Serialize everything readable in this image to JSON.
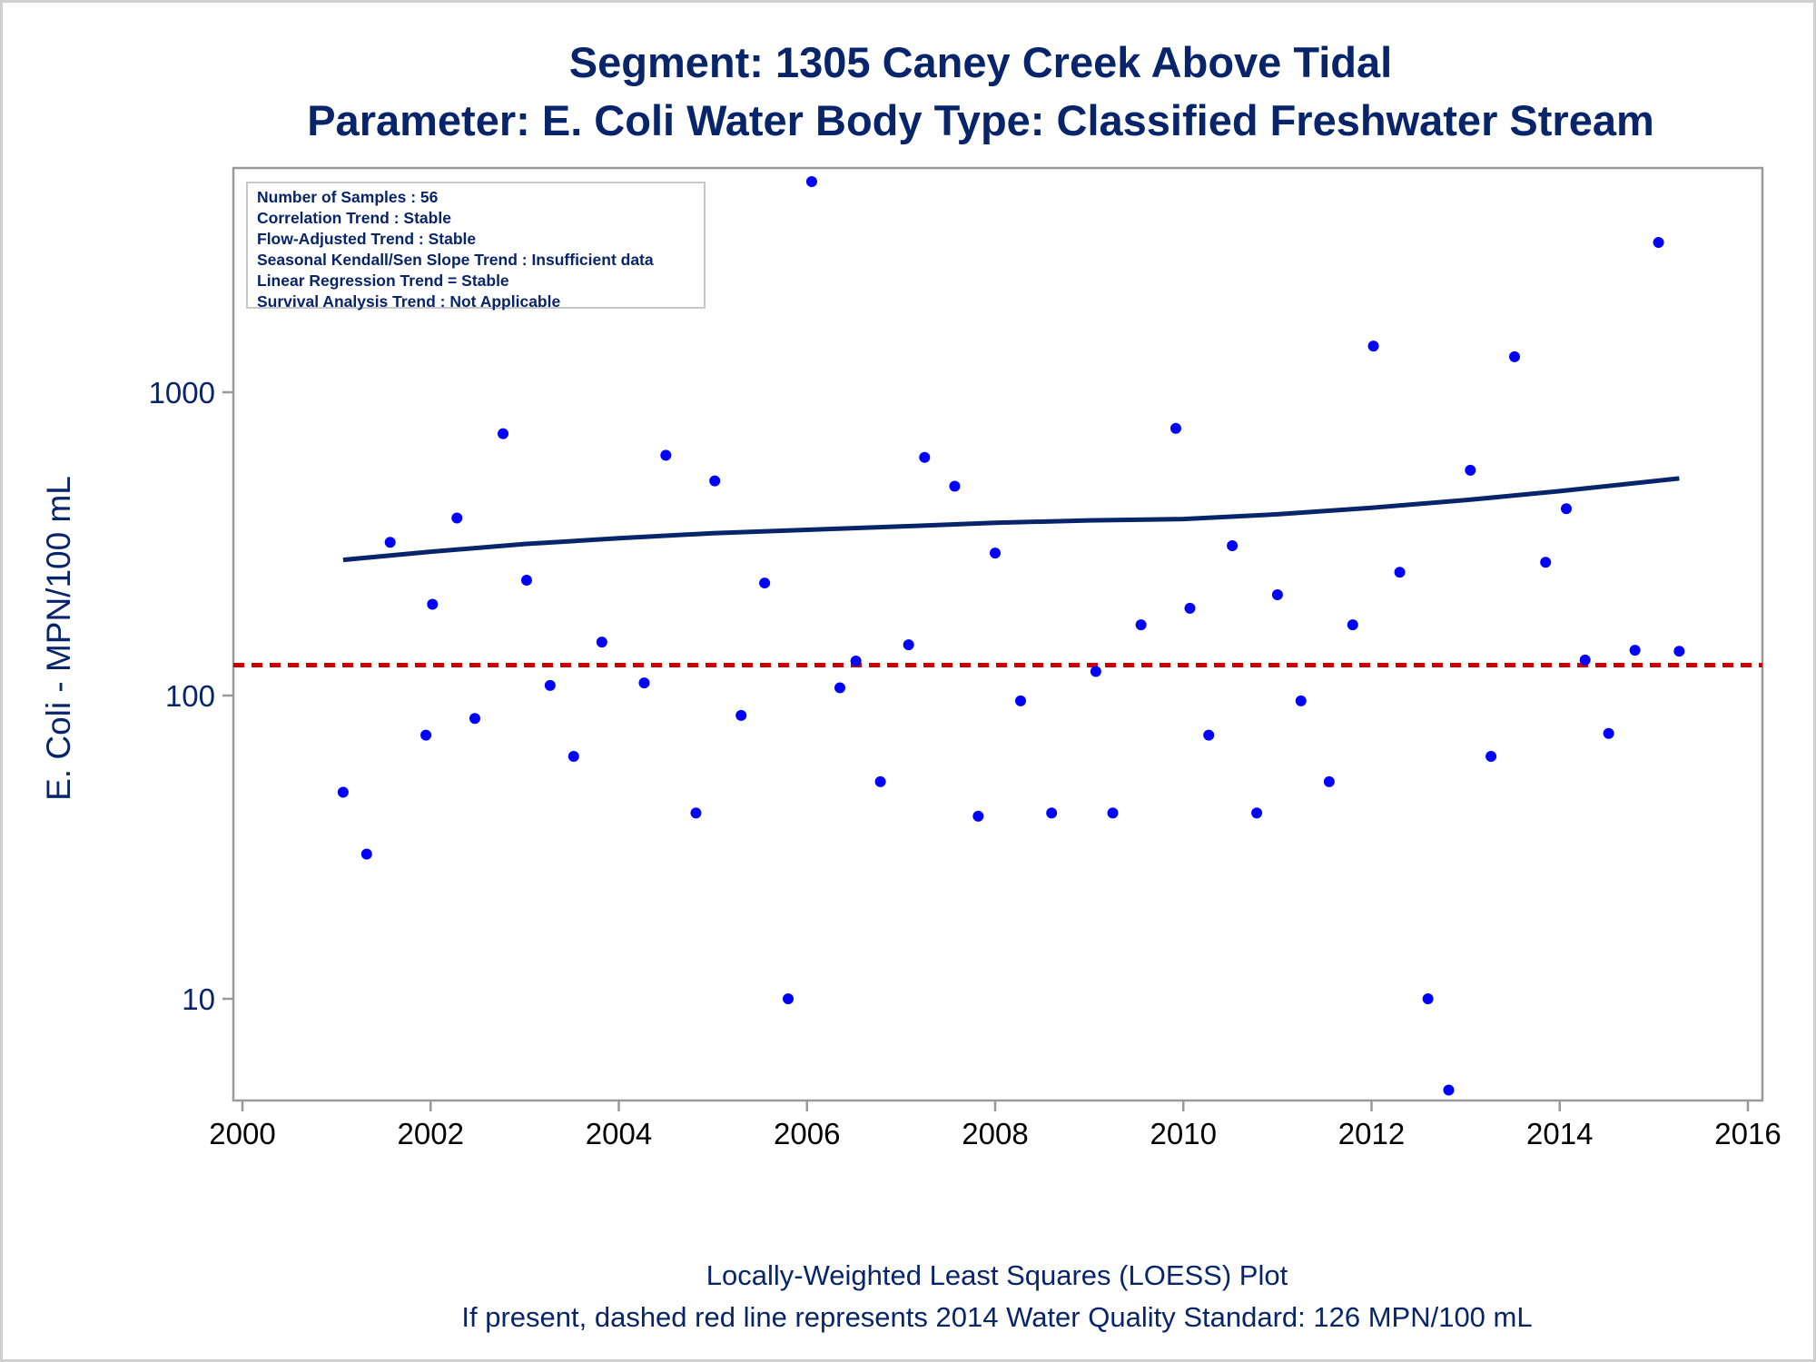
{
  "title_line1": "Segment: 1305  Caney Creek Above Tidal",
  "title_line2": "Parameter: E. Coli   Water Body Type: Classified Freshwater Stream",
  "stats_box": [
    "Number of Samples : 56",
    "Correlation Trend : Stable",
    "Flow-Adjusted Trend : Stable",
    "Seasonal Kendall/Sen Slope Trend : Insufficient data",
    "Linear Regression Trend = Stable",
    "Survival Analysis Trend : Not Applicable"
  ],
  "footnote1": "Locally-Weighted Least Squares (LOESS) Plot",
  "footnote2": "If present, dashed red line represents 2014 Water Quality Standard: 126 MPN/100 mL",
  "colors": {
    "text": "#08246b",
    "points": "#0000ff",
    "loess": "#08246b",
    "standard_line": "#cc0000",
    "frame": "#999999"
  },
  "chart_data": {
    "type": "scatter",
    "ylabel": "E. Coli - MPN/100 mL",
    "xlabel": "",
    "y_scale": "log",
    "xlim": [
      2000,
      2016
    ],
    "ylim": [
      5,
      5000
    ],
    "x_ticks": [
      2000,
      2002,
      2004,
      2006,
      2008,
      2010,
      2012,
      2014,
      2016
    ],
    "y_ticks": [
      10,
      100,
      1000
    ],
    "grid": false,
    "samples": {
      "x": [
        2001.07,
        2001.32,
        2001.57,
        2001.95,
        2002.02,
        2002.28,
        2002.47,
        2002.77,
        2003.02,
        2003.27,
        2003.52,
        2003.82,
        2004.27,
        2004.5,
        2004.82,
        2005.02,
        2005.3,
        2005.55,
        2005.8,
        2006.05,
        2006.35,
        2006.52,
        2006.78,
        2007.08,
        2007.25,
        2007.57,
        2007.82,
        2008.0,
        2008.27,
        2008.6,
        2009.07,
        2009.25,
        2009.55,
        2009.92,
        2010.07,
        2010.27,
        2010.52,
        2010.78,
        2011.0,
        2011.25,
        2011.55,
        2011.8,
        2012.02,
        2012.3,
        2012.6,
        2012.82,
        2013.05,
        2013.27,
        2013.52,
        2013.85,
        2014.07,
        2014.27,
        2014.52,
        2014.8,
        2015.05,
        2015.27
      ],
      "y": [
        48,
        30,
        320,
        74,
        200,
        385,
        84,
        730,
        240,
        108,
        63,
        150,
        110,
        620,
        41,
        510,
        86,
        235,
        10,
        4950,
        106,
        130,
        52,
        147,
        610,
        490,
        40,
        295,
        96,
        41,
        120,
        41,
        171,
        760,
        194,
        74,
        312,
        41,
        215,
        96,
        52,
        171,
        1420,
        255,
        10,
        5,
        553,
        63,
        1310,
        275,
        413,
        131,
        75,
        141,
        3120,
        140
      ]
    },
    "loess": {
      "x": [
        2001.07,
        2002.0,
        2003.0,
        2004.0,
        2005.0,
        2006.0,
        2007.0,
        2008.0,
        2009.0,
        2010.0,
        2011.0,
        2012.0,
        2013.0,
        2014.0,
        2015.27
      ],
      "y": [
        280,
        298,
        316,
        330,
        343,
        352,
        361,
        371,
        378,
        382,
        396,
        416,
        441,
        472,
        520
      ]
    },
    "standard_line": {
      "y": 126,
      "style": "dashed"
    }
  }
}
